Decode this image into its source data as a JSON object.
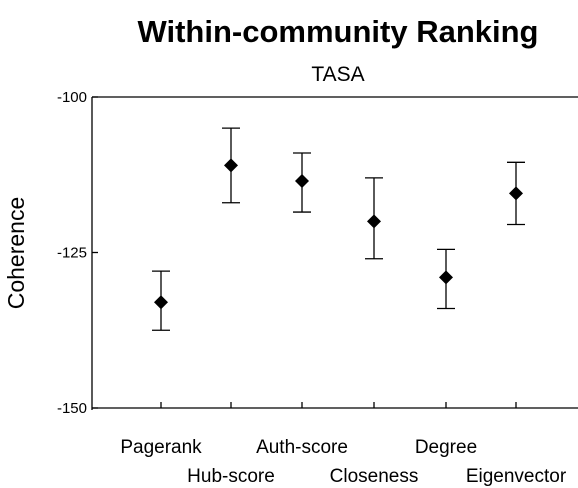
{
  "chart_data": {
    "type": "scatter",
    "title": "Within-community Ranking",
    "subtitle": "TASA",
    "xlabel": "",
    "ylabel": "Coherence",
    "ylim": [
      -150,
      -100
    ],
    "yticks": [
      -100,
      -125,
      -150
    ],
    "ytick_labels": [
      "-100",
      "-125",
      "-150"
    ],
    "grid": false,
    "legend": "none",
    "categories": [
      "Pagerank",
      "Hub-score",
      "Auth-score",
      "Closeness",
      "Degree",
      "Eigenvector"
    ],
    "values": [
      -133,
      -111,
      -113.5,
      -120,
      -129,
      -115.5
    ],
    "error_low": [
      -137.5,
      -117,
      -118.5,
      -126,
      -134,
      -120.5
    ],
    "error_high": [
      -128,
      -105,
      -109,
      -113,
      -124.5,
      -110.5
    ],
    "marker": "diamond",
    "color": "#000000"
  }
}
